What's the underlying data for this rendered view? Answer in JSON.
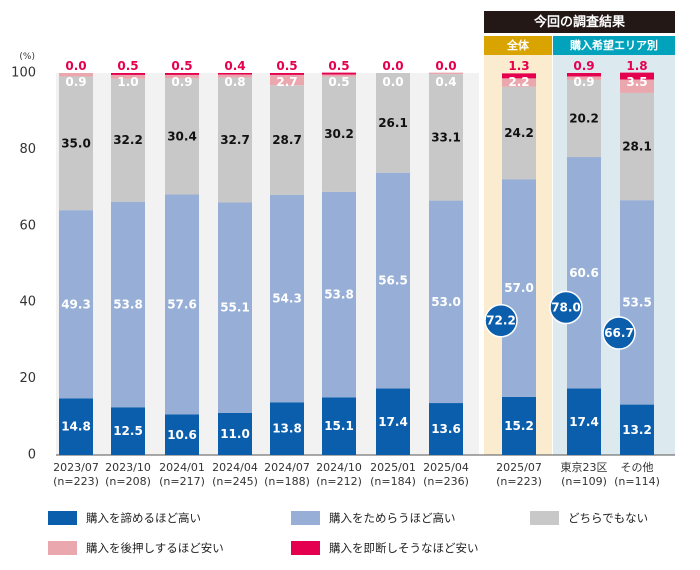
{
  "chart_data": {
    "type": "bar",
    "stacked": true,
    "y_unit": "(%)",
    "ylim": [
      0,
      100
    ],
    "yticks": [
      0,
      20,
      40,
      60,
      80,
      100
    ],
    "categories": [
      [
        "2023/07",
        "(n=223)"
      ],
      [
        "2023/10",
        "(n=208)"
      ],
      [
        "2024/01",
        "(n=217)"
      ],
      [
        "2024/04",
        "(n=245)"
      ],
      [
        "2024/07",
        "(n=188)"
      ],
      [
        "2024/10",
        "(n=212)"
      ],
      [
        "2025/01",
        "(n=184)"
      ],
      [
        "2025/04",
        "(n=236)"
      ],
      [
        "2025/07",
        "(n=223)"
      ],
      [
        "東京23区",
        "(n=109)"
      ],
      [
        "その他",
        "(n=114)"
      ]
    ],
    "series": [
      {
        "name": "購入を諦めるほど高い",
        "color": "#0a5eab",
        "label_color": "#ffffff",
        "values": [
          14.8,
          12.5,
          10.6,
          11.0,
          13.8,
          15.1,
          17.4,
          13.6,
          15.2,
          17.4,
          13.2
        ]
      },
      {
        "name": "購入をためらうほど高い",
        "color": "#97afd6",
        "label_color": "#ffffff",
        "values": [
          49.3,
          53.8,
          57.6,
          55.1,
          54.3,
          53.8,
          56.5,
          53.0,
          57.0,
          60.6,
          53.5
        ]
      },
      {
        "name": "どちらでもない",
        "color": "#c8c8c8",
        "label_color": "#111111",
        "values": [
          35.0,
          32.2,
          30.4,
          32.7,
          28.7,
          30.2,
          26.1,
          33.1,
          24.2,
          20.2,
          28.1
        ]
      },
      {
        "name": "購入を後押しするほど安い",
        "color": "#eba7ae",
        "label_color": "#ffffff",
        "values": [
          0.9,
          1.0,
          0.9,
          0.8,
          2.7,
          0.5,
          0.0,
          0.4,
          2.2,
          0.9,
          3.5
        ]
      },
      {
        "name": "購入を即断しそうなほど安い",
        "color": "#e4004f",
        "label_color": "#e4004f",
        "values": [
          0.0,
          0.5,
          0.5,
          0.4,
          0.5,
          0.5,
          0.0,
          0.0,
          1.3,
          0.9,
          1.8
        ]
      }
    ],
    "total_callouts": [
      {
        "category_index": 8,
        "value": "72.2"
      },
      {
        "category_index": 9,
        "value": "78.0"
      },
      {
        "category_index": 10,
        "value": "66.7"
      }
    ],
    "header": {
      "title": "今回の調査結果",
      "overall_label": "全体",
      "area_label": "購入希望エリア別"
    },
    "colors": {
      "title_bg": "#231815",
      "overall_bg": "#fbeccf",
      "overall_tab": "#d9a300",
      "area_bg": "#dceaf0",
      "area_tab": "#00a3bb",
      "plot_bg": "#f2f2f2",
      "callout": "#0a5eab"
    },
    "legend_position": "bottom",
    "grid": false
  }
}
